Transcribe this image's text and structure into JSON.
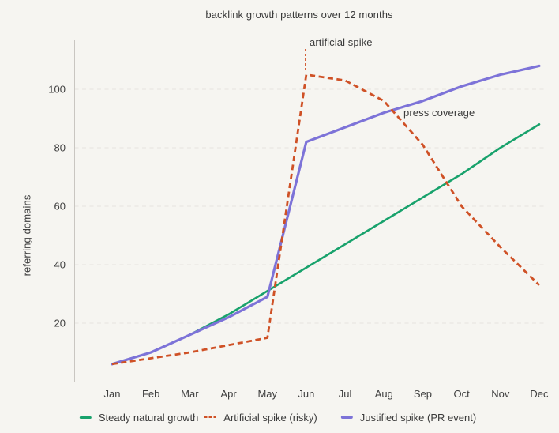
{
  "colors": {
    "background": "#f6f5f1",
    "grid": "#e5e3df",
    "spine": "#c9c6c1",
    "tick_text": "#404040",
    "title_text": "#3a3a3a",
    "leader_purple": "#b9b0e8"
  },
  "chart_data": {
    "type": "line",
    "title": "backlink growth patterns over 12 months",
    "xlabel": "",
    "ylabel": "referring domains",
    "categories": [
      "Jan",
      "Feb",
      "Mar",
      "Apr",
      "May",
      "Jun",
      "Jul",
      "Aug",
      "Sep",
      "Oct",
      "Nov",
      "Dec"
    ],
    "series": [
      {
        "name": "Steady natural growth",
        "color": "#18a26c",
        "style": "solid",
        "values": [
          6,
          10,
          16,
          23,
          31,
          39,
          47,
          55,
          63,
          71,
          80,
          88
        ]
      },
      {
        "name": "Artificial spike (risky)",
        "color": "#cf5126",
        "style": "dashed",
        "values": [
          6,
          8,
          10,
          12.5,
          15,
          105,
          103,
          96,
          81,
          60,
          46,
          33
        ]
      },
      {
        "name": "Justified spike (PR event)",
        "color": "#7d73d8",
        "style": "solid",
        "values": [
          6,
          10,
          16,
          22,
          29,
          82,
          87,
          92,
          96,
          101,
          105,
          108
        ]
      }
    ],
    "yticks": [
      20,
      40,
      60,
      80,
      100
    ],
    "ylim": [
      0,
      117
    ],
    "grid": "horizontal-dashed",
    "legend_position": "bottom",
    "annotations": [
      {
        "text": "artificial spike",
        "month": "Jun"
      },
      {
        "text": "press coverage",
        "month": "Sep"
      }
    ]
  }
}
